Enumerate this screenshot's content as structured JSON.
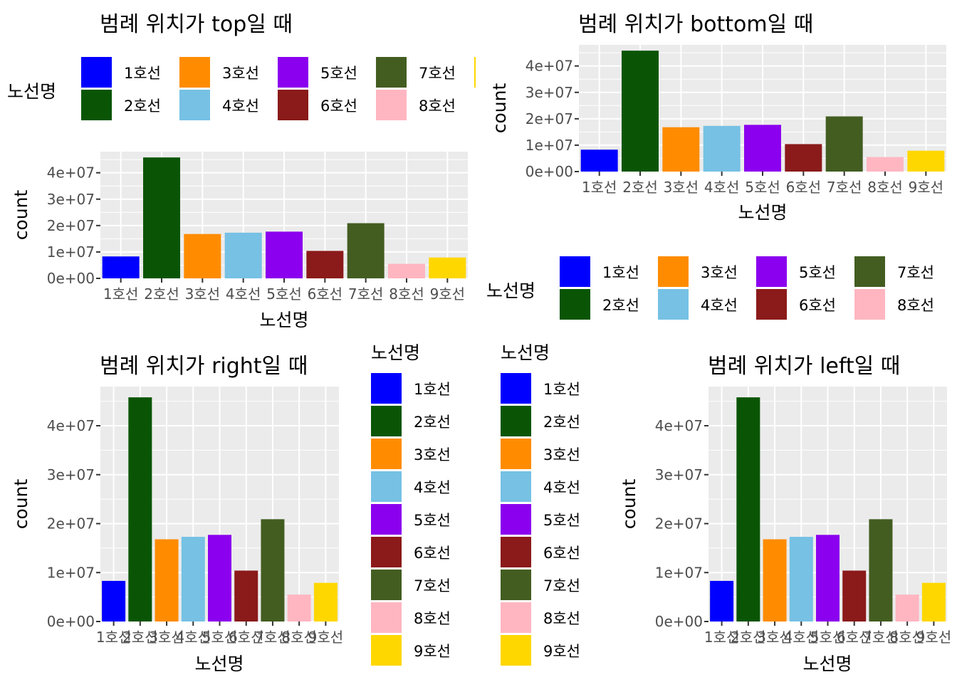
{
  "legend_title": "노선명",
  "lines": [
    "1호선",
    "2호선",
    "3호선",
    "4호선",
    "5호선",
    "6호선",
    "7호선",
    "8호선",
    "9호선"
  ],
  "colors": [
    "#0000FF",
    "#0A5505",
    "#FF8C00",
    "#76C1E4",
    "#8B00EE",
    "#8B1A1A",
    "#435D21",
    "#FFB6C1",
    "#FFD700"
  ],
  "chart_data": [
    {
      "type": "bar",
      "legend_position": "top",
      "title": "범례 위치가 top일 때",
      "xlabel": "노선명",
      "ylabel": "count",
      "categories": [
        "1호선",
        "2호선",
        "3호선",
        "4호선",
        "5호선",
        "6호선",
        "7호선",
        "8호선",
        "9호선"
      ],
      "values": [
        8300000,
        45800000,
        16800000,
        17300000,
        17700000,
        10400000,
        20900000,
        5500000,
        7900000
      ],
      "ylim": [
        0,
        48000000
      ],
      "yticks": [
        {
          "v": 0,
          "label": "0e+00"
        },
        {
          "v": 10000000,
          "label": "1e+07"
        },
        {
          "v": 20000000,
          "label": "2e+07"
        },
        {
          "v": 30000000,
          "label": "3e+07"
        },
        {
          "v": 40000000,
          "label": "4e+07"
        }
      ],
      "grid": true
    },
    {
      "type": "bar",
      "legend_position": "bottom",
      "title": "범례 위치가 bottom일 때",
      "xlabel": "노선명",
      "ylabel": "count",
      "categories": [
        "1호선",
        "2호선",
        "3호선",
        "4호선",
        "5호선",
        "6호선",
        "7호선",
        "8호선",
        "9호선"
      ],
      "values": [
        8300000,
        45800000,
        16800000,
        17300000,
        17700000,
        10400000,
        20900000,
        5500000,
        7900000
      ],
      "ylim": [
        0,
        48000000
      ],
      "yticks": [
        {
          "v": 0,
          "label": "0e+00"
        },
        {
          "v": 10000000,
          "label": "1e+07"
        },
        {
          "v": 20000000,
          "label": "2e+07"
        },
        {
          "v": 30000000,
          "label": "3e+07"
        },
        {
          "v": 40000000,
          "label": "4e+07"
        }
      ],
      "grid": true
    },
    {
      "type": "bar",
      "legend_position": "right",
      "title": "범례 위치가 right일 때",
      "xlabel": "노선명",
      "ylabel": "count",
      "categories": [
        "1호선",
        "2호선",
        "3호선",
        "4호선",
        "5호선",
        "6호선",
        "7호선",
        "8호선",
        "9호선"
      ],
      "values": [
        8300000,
        45800000,
        16800000,
        17300000,
        17700000,
        10400000,
        20900000,
        5500000,
        7900000
      ],
      "ylim": [
        0,
        48000000
      ],
      "yticks": [
        {
          "v": 0,
          "label": "0e+00"
        },
        {
          "v": 10000000,
          "label": "1e+07"
        },
        {
          "v": 20000000,
          "label": "2e+07"
        },
        {
          "v": 30000000,
          "label": "3e+07"
        },
        {
          "v": 40000000,
          "label": "4e+07"
        }
      ],
      "grid": true
    },
    {
      "type": "bar",
      "legend_position": "left",
      "title": "범례 위치가 left일 때",
      "xlabel": "노선명",
      "ylabel": "count",
      "categories": [
        "1호선",
        "2호선",
        "3호선",
        "4호선",
        "5호선",
        "6호선",
        "7호선",
        "8호선",
        "9호선"
      ],
      "values": [
        8300000,
        45800000,
        16800000,
        17300000,
        17700000,
        10400000,
        20900000,
        5500000,
        7900000
      ],
      "ylim": [
        0,
        48000000
      ],
      "yticks": [
        {
          "v": 0,
          "label": "0e+00"
        },
        {
          "v": 10000000,
          "label": "1e+07"
        },
        {
          "v": 20000000,
          "label": "2e+07"
        },
        {
          "v": 30000000,
          "label": "3e+07"
        },
        {
          "v": 40000000,
          "label": "4e+07"
        }
      ],
      "grid": true
    }
  ]
}
